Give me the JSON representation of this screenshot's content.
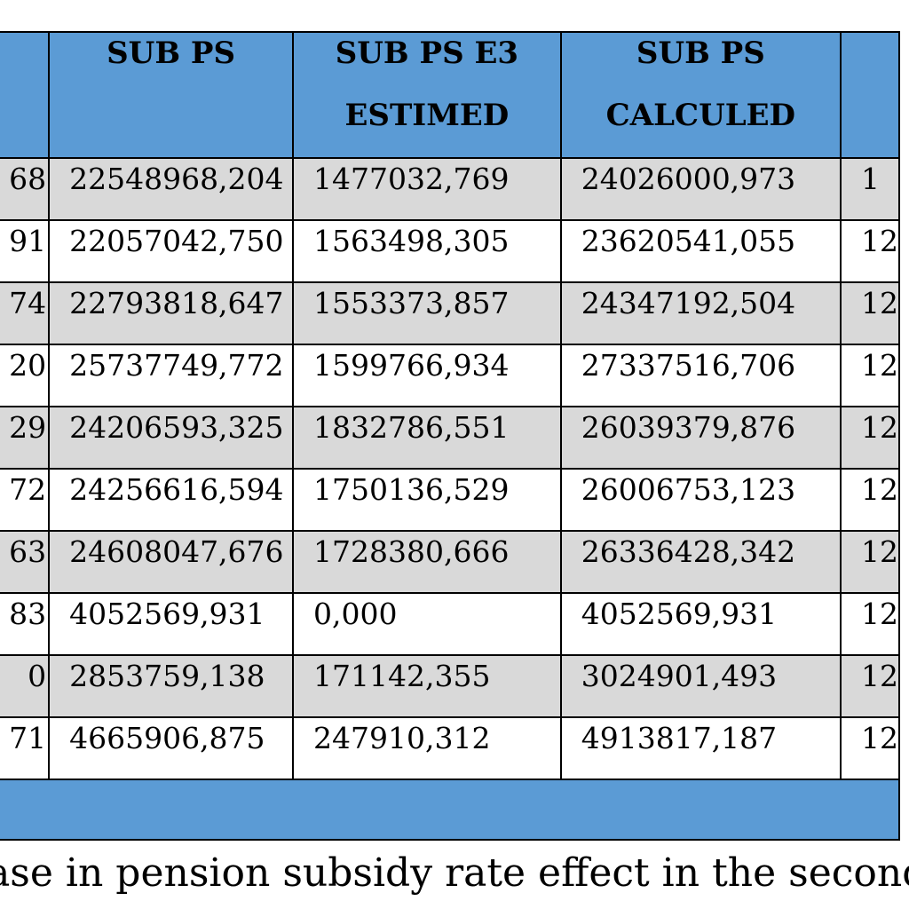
{
  "table": {
    "headers": [
      [
        "",
        ""
      ],
      [
        "SUB PS",
        ""
      ],
      [
        "SUB PS E3",
        "ESTIMED"
      ],
      [
        "SUB PS",
        "CALCULED"
      ],
      [
        "",
        ""
      ]
    ],
    "rows": [
      [
        "68",
        "22548968,204",
        "1477032,769",
        "24026000,973",
        "1"
      ],
      [
        "91",
        "22057042,750",
        "1563498,305",
        "23620541,055",
        "12"
      ],
      [
        "74",
        "22793818,647",
        "1553373,857",
        "24347192,504",
        "12"
      ],
      [
        "20",
        "25737749,772",
        "1599766,934",
        "27337516,706",
        "12"
      ],
      [
        "29",
        "24206593,325",
        "1832786,551",
        "26039379,876",
        "12"
      ],
      [
        "72",
        "24256616,594",
        "1750136,529",
        "26006753,123",
        "12"
      ],
      [
        "63",
        "24608047,676",
        "1728380,666",
        "26336428,342",
        "12"
      ],
      [
        "83",
        "4052569,931",
        "0,000",
        "4052569,931",
        "12"
      ],
      [
        "0",
        "2853759,138",
        "171142,355",
        "3024901,493",
        "12"
      ],
      [
        "71",
        "4665906,875",
        "247910,312",
        "4913817,187",
        "12"
      ]
    ]
  },
  "caption": "rease in pension subsidy rate effect in the second half",
  "colors": {
    "header_blue": "#5b9bd5",
    "row_shade": "#d9d9d9",
    "row_plain": "#ffffff",
    "border": "#000000"
  }
}
